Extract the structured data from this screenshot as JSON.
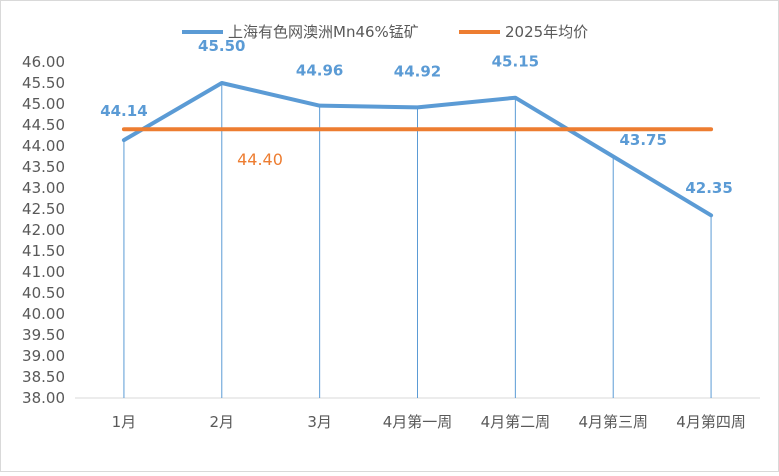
{
  "chart_data": {
    "type": "line",
    "categories": [
      "1月",
      "2月",
      "3月",
      "4月第一周",
      "4月第二周",
      "4月第三周",
      "4月第四周"
    ],
    "series": [
      {
        "name": "上海有色网澳洲Mn46%锰矿",
        "values": [
          44.14,
          45.5,
          44.96,
          44.92,
          45.15,
          43.75,
          42.35
        ],
        "labels": [
          "44.14",
          "45.50",
          "44.96",
          "44.92",
          "45.15",
          "43.75",
          "42.35"
        ],
        "color": "#5b9bd5",
        "drop_lines": true
      },
      {
        "name": "2025年均价",
        "values": [
          44.4,
          44.4,
          44.4,
          44.4,
          44.4,
          44.4,
          44.4
        ],
        "label": "44.40",
        "color": "#ed7d31"
      }
    ],
    "ylim": [
      38.0,
      46.0
    ],
    "ystep": 0.5,
    "ytick_labels": [
      "38.00",
      "38.50",
      "39.00",
      "39.50",
      "40.00",
      "40.50",
      "41.00",
      "41.50",
      "42.00",
      "42.50",
      "43.00",
      "43.50",
      "44.00",
      "44.50",
      "45.00",
      "45.50",
      "46.00"
    ],
    "grid": false,
    "legend_position": "top",
    "xlabel": "",
    "ylabel": ""
  }
}
